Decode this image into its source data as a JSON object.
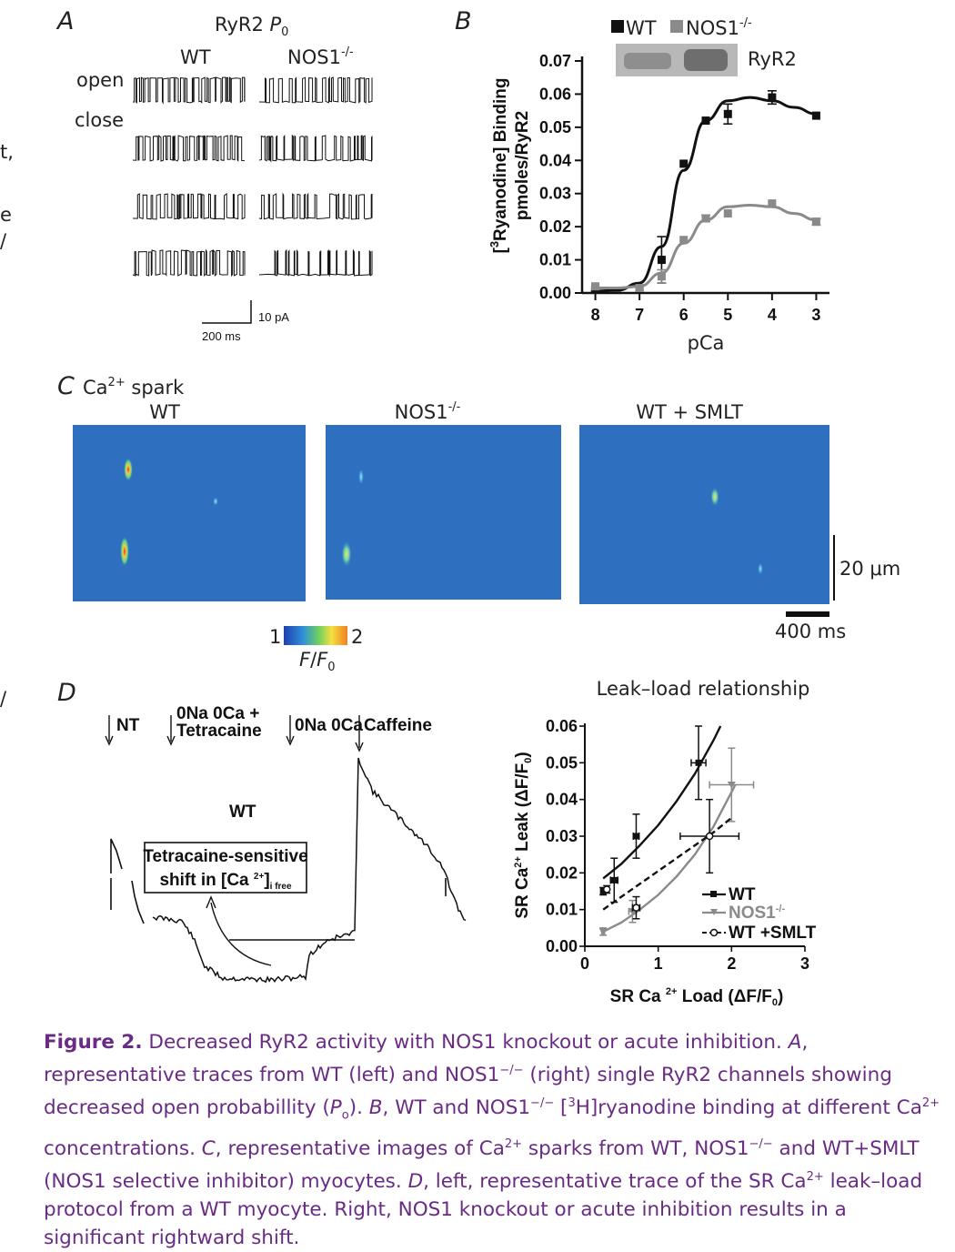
{
  "panelA": {
    "letter": "A",
    "title_prefix": "RyR2 ",
    "title_italic": "P",
    "title_sub": "0",
    "col_wt": "WT",
    "col_ko_prefix": "NOS1",
    "col_ko_sup": "-/-",
    "label_open": "open",
    "label_close": "close",
    "scale_current": "10 pA",
    "scale_time": "200 ms"
  },
  "panelB": {
    "letter": "B",
    "legend_wt": "WT",
    "legend_ko_prefix": "NOS1",
    "legend_ko_sup": "-/-",
    "blot_label": "RyR2",
    "ylabel_line1": "[",
    "ylabel_sup": "3",
    "ylabel_rest": "Ryanodine] Binding",
    "ylabel_line2": "pmoles/RyR2",
    "xlabel": "pCa",
    "colors": {
      "wt": "#111111",
      "ko": "#8a8a8a"
    }
  },
  "panelC": {
    "letter": "C",
    "title_prefix": "Ca",
    "title_sup": "2+",
    "title_rest": " spark",
    "img_wt": "WT",
    "img_ko_prefix": "NOS1",
    "img_ko_sup": "-/-",
    "img_smlt": "WT + SMLT",
    "scale_space": "20 μm",
    "scale_time": "400 ms",
    "cbar_min": "1",
    "cbar_max": "2",
    "cbar_label_f": "F",
    "cbar_label_f0": "F",
    "cbar_label_sub": "0",
    "colors": {
      "background": "#2f6fc0"
    }
  },
  "panelD": {
    "letter": "D",
    "trace_nt": "NT",
    "trace_tet_line1": "0Na 0Ca +",
    "trace_tet_line2": "Tetracaine",
    "trace_0na": "0Na 0Ca",
    "trace_caffeine": "Caffeine",
    "trace_wt": "WT",
    "box_line1": "Tetracaine-sensitive",
    "box_line2_a": "shift in [Ca ",
    "box_line2_sup": "2+",
    "box_line2_b": "]",
    "box_line2_sub": "i free",
    "plot_title": "Leak–load relationship",
    "ylabel_a": "SR Ca",
    "ylabel_sup": "2+",
    "ylabel_b": " Leak (ΔF/F",
    "ylabel_sub": "0",
    "ylabel_c": ")",
    "xlabel_a": "SR Ca ",
    "xlabel_sup": "2+",
    "xlabel_b": " Load (ΔF/F",
    "xlabel_sub": "0",
    "xlabel_c": ")",
    "legend_wt": "WT",
    "legend_ko_prefix": "NOS1",
    "legend_ko_sup": "-/-",
    "legend_smlt": "WT +SMLT"
  },
  "chart_data": [
    {
      "type": "line",
      "panel": "B",
      "xlabel": "pCa",
      "ylabel": "[3Ryanodine] Binding pmoles/RyR2",
      "x_ticks": [
        8,
        7,
        6,
        5,
        4,
        3
      ],
      "y_ticks": [
        "0.00",
        "0.01",
        "0.02",
        "0.03",
        "0.04",
        "0.05",
        "0.06",
        "0.07"
      ],
      "xlim": [
        8.3,
        2.7
      ],
      "ylim": [
        0,
        0.07
      ],
      "x_reversed": true,
      "series": [
        {
          "name": "WT",
          "x": [
            8,
            7,
            6.5,
            6,
            5.5,
            5,
            4,
            3
          ],
          "y": [
            0.001,
            0.001,
            0.01,
            0.039,
            0.052,
            0.054,
            0.059,
            0.0535
          ],
          "err": [
            0,
            0,
            0.007,
            0,
            0,
            0.003,
            0.002,
            0
          ],
          "fit": [
            [
              8.1,
              0.0005
            ],
            [
              7.5,
              0.0008
            ],
            [
              7,
              0.003
            ],
            [
              6.5,
              0.014
            ],
            [
              6,
              0.037
            ],
            [
              5.5,
              0.052
            ],
            [
              5,
              0.058
            ],
            [
              4.5,
              0.059
            ],
            [
              4,
              0.058
            ],
            [
              3.5,
              0.056
            ],
            [
              3,
              0.054
            ]
          ]
        },
        {
          "name": "NOS1-/-",
          "x": [
            8,
            7,
            6.5,
            6,
            5.5,
            5,
            4,
            3
          ],
          "y": [
            0.002,
            0.0015,
            0.005,
            0.016,
            0.0225,
            0.024,
            0.027,
            0.0215
          ],
          "err": [
            0,
            0,
            0.002,
            0,
            0.001,
            0,
            0,
            0.001
          ],
          "fit": [
            [
              8.1,
              0.0015
            ],
            [
              7.5,
              0.0015
            ],
            [
              7,
              0.002
            ],
            [
              6.5,
              0.006
            ],
            [
              6,
              0.015
            ],
            [
              5.5,
              0.022
            ],
            [
              5,
              0.026
            ],
            [
              4.5,
              0.0265
            ],
            [
              4,
              0.026
            ],
            [
              3.5,
              0.024
            ],
            [
              3,
              0.022
            ]
          ]
        }
      ]
    },
    {
      "type": "line",
      "panel": "D-right",
      "title": "Leak–load relationship",
      "xlabel": "SR Ca2+ Load (ΔF/F0)",
      "ylabel": "SR Ca2+ Leak (ΔF/F0)",
      "x_ticks": [
        0,
        1,
        2,
        3
      ],
      "y_ticks": [
        "0.00",
        "0.01",
        "0.02",
        "0.03",
        "0.04",
        "0.05",
        "0.06"
      ],
      "xlim": [
        0,
        3
      ],
      "ylim": [
        0,
        0.06
      ],
      "legend": "bottom-right",
      "series": [
        {
          "name": "WT",
          "points": [
            [
              0.25,
              0.015,
              0,
              0.001
            ],
            [
              0.4,
              0.018,
              0.05,
              0.006
            ],
            [
              0.7,
              0.03,
              0.04,
              0.006
            ],
            [
              1.55,
              0.05,
              0.1,
              0.01
            ]
          ],
          "fit": [
            [
              0.25,
              0.0185
            ],
            [
              0.5,
              0.0225
            ],
            [
              0.75,
              0.0275
            ],
            [
              1.0,
              0.033
            ],
            [
              1.25,
              0.0395
            ],
            [
              1.5,
              0.047
            ],
            [
              1.75,
              0.056
            ],
            [
              1.85,
              0.06
            ]
          ]
        },
        {
          "name": "NOS1-/-",
          "points": [
            [
              0.25,
              0.004,
              0.02,
              0.001
            ],
            [
              0.65,
              0.0095,
              0.05,
              0.003
            ],
            [
              2.0,
              0.044,
              0.3,
              0.01
            ]
          ],
          "fit": [
            [
              0.25,
              0.004
            ],
            [
              0.5,
              0.0065
            ],
            [
              0.75,
              0.01
            ],
            [
              1.0,
              0.014
            ],
            [
              1.25,
              0.019
            ],
            [
              1.5,
              0.025
            ],
            [
              1.75,
              0.0325
            ],
            [
              2.0,
              0.042
            ],
            [
              2.05,
              0.044
            ]
          ]
        },
        {
          "name": "WT +SMLT",
          "points": [
            [
              0.3,
              0.0155,
              0.02,
              0.001
            ],
            [
              0.7,
              0.0105,
              0.05,
              0.003
            ],
            [
              1.7,
              0.03,
              0.4,
              0.01
            ]
          ],
          "fit": [
            [
              0.25,
              0.01
            ],
            [
              0.5,
              0.0135
            ],
            [
              0.75,
              0.017
            ],
            [
              1.0,
              0.0205
            ],
            [
              1.25,
              0.024
            ],
            [
              1.5,
              0.0275
            ],
            [
              1.75,
              0.031
            ],
            [
              2.0,
              0.035
            ]
          ]
        }
      ]
    }
  ],
  "caption": {
    "figure_label": "Figure 2.",
    "s1": " Decreased RyR2 activity with NOS1 knockout or acute inhibition. ",
    "A": "A",
    "s2": ", representative traces from WT (left) and NOS1",
    "sup_ko": "−/−",
    "s3": " (right) single RyR2 channels showing decreased open probabillity (",
    "Po": "P",
    "Po_sub": "o",
    "s4": "). ",
    "B": "B",
    "s5": ", WT and NOS1",
    "s6": " [",
    "sup3": "3",
    "s7": "H]ryanodine binding at different Ca",
    "sup2": "2+",
    "s8": " concentrations. ",
    "C": "C",
    "s9": ", representative images of Ca",
    "s10": " sparks from WT, NOS1",
    "s11": " and WT+SMLT (NOS1 selective inhibitor) myocytes. ",
    "D": "D",
    "s12": ", left, representative trace of the SR Ca",
    "s13": " leak–load protocol from a WT myocyte. Right, NOS1 knockout or acute inhibition results in a significant rightward shift."
  },
  "margin_fragments": [
    "t,",
    "e",
    "/",
    "/"
  ]
}
